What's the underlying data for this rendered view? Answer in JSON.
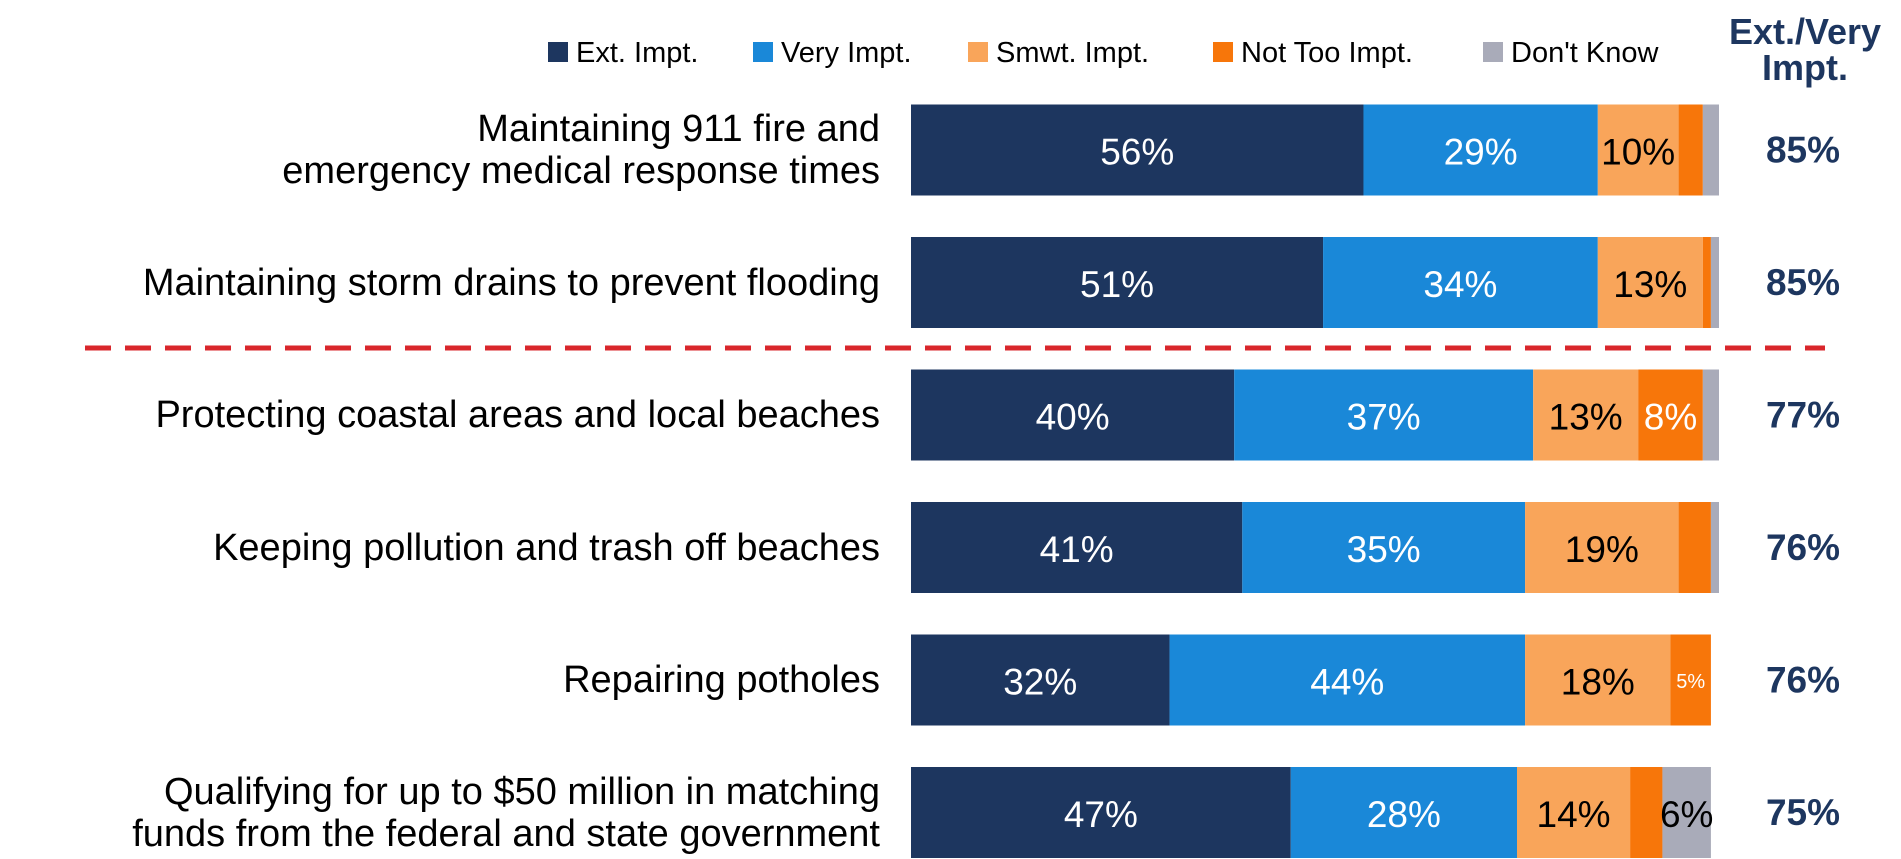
{
  "chart_data": {
    "type": "bar",
    "orientation": "horizontal",
    "stacked": true,
    "xlim": [
      0,
      100
    ],
    "legend": "top",
    "categories": [
      "Maintaining 911 fire and\nemergency medical response times",
      "Maintaining storm drains to prevent flooding",
      "Protecting coastal areas and local beaches",
      "Keeping pollution and trash off beaches",
      "Repairing potholes",
      "Qualifying for up to $50 million in matching\nfunds from the federal and state government"
    ],
    "series": [
      {
        "name": "Ext. Impt.",
        "color": "#1d365f",
        "label_color": "#ffffff",
        "values": [
          56,
          51,
          40,
          41,
          32,
          47
        ],
        "value_labels": [
          "56%",
          "51%",
          "40%",
          "41%",
          "32%",
          "47%"
        ]
      },
      {
        "name": "Very Impt.",
        "color": "#1a88d8",
        "label_color": "#ffffff",
        "values": [
          29,
          34,
          37,
          35,
          44,
          28
        ],
        "value_labels": [
          "29%",
          "34%",
          "37%",
          "35%",
          "44%",
          "28%"
        ]
      },
      {
        "name": "Smwt. Impt.",
        "color": "#f9a55a",
        "label_color": "#000000",
        "values": [
          10,
          13,
          13,
          19,
          18,
          14
        ],
        "value_labels": [
          "10%",
          "13%",
          "13%",
          "19%",
          "18%",
          "14%"
        ]
      },
      {
        "name": "Not Too Impt.",
        "color": "#f7760a",
        "label_color": "#ffffff",
        "values": [
          3,
          1,
          8,
          4,
          5,
          4
        ],
        "value_labels": [
          null,
          null,
          "8%",
          null,
          "5%",
          null
        ]
      },
      {
        "name": "Don't Know",
        "color": "#a9abb9",
        "label_color": "#000000",
        "values": [
          2,
          1,
          2,
          1,
          0,
          6
        ],
        "value_labels": [
          null,
          null,
          null,
          null,
          null,
          "6%"
        ]
      }
    ],
    "totals": {
      "label": "Ext./Very\nImpt.",
      "color": "#1d365f",
      "values": [
        85,
        85,
        77,
        76,
        76,
        75
      ],
      "value_labels": [
        "85%",
        "85%",
        "77%",
        "76%",
        "76%",
        "75%"
      ]
    }
  }
}
